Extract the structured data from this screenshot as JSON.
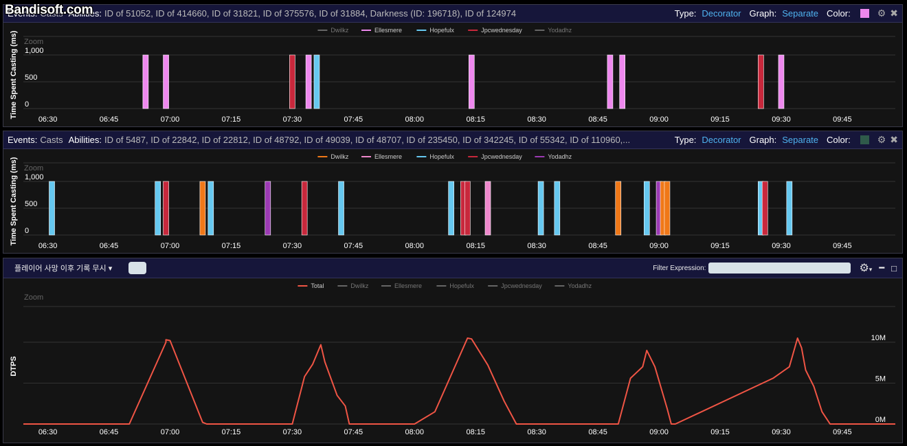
{
  "watermark": "Bandisoft.com",
  "x_ticks": [
    "06:30",
    "06:45",
    "07:00",
    "07:15",
    "07:30",
    "07:45",
    "08:00",
    "08:15",
    "08:30",
    "08:45",
    "09:00",
    "09:15",
    "09:30",
    "09:45"
  ],
  "panel1": {
    "events_label": "Events:",
    "events_value": "Casts",
    "abilities_label": "Abilities:",
    "abilities_value": "ID of 51052, ID of 414660, ID of 31821, ID of 375576, ID of 31884, Darkness (ID: 196718), ID of 124974",
    "type_label": "Type:",
    "type_value": "Decorator",
    "graph_label": "Graph:",
    "graph_value": "Separate",
    "color_label": "Color:",
    "color_value": "#ee88ee",
    "settings_icon": "gear-icon",
    "close_icon": "close-icon"
  },
  "panel2": {
    "events_label": "Events:",
    "events_value": "Casts",
    "abilities_label": "Abilities:",
    "abilities_value": "ID of 5487, ID of 22842, ID of 22812, ID of 48792, ID of 49039, ID of 48707, ID of 235450, ID of 342245, ID of 55342, ID of 110960,...",
    "type_label": "Type:",
    "type_value": "Decorator",
    "graph_label": "Graph:",
    "graph_value": "Separate",
    "color_label": "Color:",
    "color_value": "#2f5a4a",
    "settings_icon": "gear-icon",
    "close_icon": "close-icon"
  },
  "toolbar": {
    "dropdown_label": "플레이어 사망 이후 기록 무시",
    "filter_label": "Filter Expression:",
    "filter_value": "",
    "settings_icon": "gear-icon",
    "minimize_icon": "minimize-icon",
    "maximize_icon": "maximize-icon"
  },
  "chart_data": [
    {
      "type": "bar",
      "ylabel": "Time Spent Casting (ms)",
      "zoom_label": "Zoom",
      "y_ticks": [
        "0",
        "500",
        "1,000"
      ],
      "ylim": [
        0,
        1000
      ],
      "x_range": [
        "06:24",
        "09:58"
      ],
      "legend": [
        {
          "name": "Dwilkz",
          "color": "#666666"
        },
        {
          "name": "Ellesmere",
          "color": "#ee88ee"
        },
        {
          "name": "Hopefulx",
          "color": "#66c8f0"
        },
        {
          "name": "Jpcwednesday",
          "color": "#c8283c"
        },
        {
          "name": "Yodadhz",
          "color": "#666666"
        }
      ],
      "casts": [
        {
          "time": "06:54",
          "series": "Ellesmere",
          "value": 1000
        },
        {
          "time": "06:59",
          "series": "Ellesmere",
          "value": 1000
        },
        {
          "time": "07:30",
          "series": "Jpcwednesday",
          "value": 1000
        },
        {
          "time": "07:34",
          "series": "Ellesmere",
          "value": 1000
        },
        {
          "time": "07:36",
          "series": "Hopefulx",
          "value": 1000
        },
        {
          "time": "08:14",
          "series": "Ellesmere",
          "value": 1000
        },
        {
          "time": "08:48",
          "series": "Ellesmere",
          "value": 1000
        },
        {
          "time": "08:51",
          "series": "Ellesmere",
          "value": 1000
        },
        {
          "time": "09:25",
          "series": "Jpcwednesday",
          "value": 1000
        },
        {
          "time": "09:30",
          "series": "Ellesmere",
          "value": 1000
        }
      ]
    },
    {
      "type": "bar",
      "ylabel": "Time Spent Casting (ms)",
      "zoom_label": "Zoom",
      "y_ticks": [
        "0",
        "500",
        "1,000"
      ],
      "ylim": [
        0,
        1000
      ],
      "x_range": [
        "06:24",
        "09:58"
      ],
      "legend": [
        {
          "name": "Dwilkz",
          "color": "#f07818"
        },
        {
          "name": "Ellesmere",
          "color": "#ee88cc"
        },
        {
          "name": "Hopefulx",
          "color": "#66c8f0"
        },
        {
          "name": "Jpcwednesday",
          "color": "#c8283c"
        },
        {
          "name": "Yodadhz",
          "color": "#9c3ab4"
        }
      ],
      "casts": [
        {
          "time": "06:31",
          "series": "Hopefulx",
          "value": 1000
        },
        {
          "time": "06:57",
          "series": "Hopefulx",
          "value": 1000
        },
        {
          "time": "06:59",
          "series": "Jpcwednesday",
          "value": 1000
        },
        {
          "time": "07:08",
          "series": "Dwilkz",
          "value": 1000
        },
        {
          "time": "07:10",
          "series": "Hopefulx",
          "value": 1000
        },
        {
          "time": "07:24",
          "series": "Yodadhz",
          "value": 1000
        },
        {
          "time": "07:33",
          "series": "Jpcwednesday",
          "value": 1000
        },
        {
          "time": "07:42",
          "series": "Hopefulx",
          "value": 1000
        },
        {
          "time": "08:09",
          "series": "Hopefulx",
          "value": 1000
        },
        {
          "time": "08:12",
          "series": "Jpcwednesday",
          "value": 1000
        },
        {
          "time": "08:13",
          "series": "Jpcwednesday",
          "value": 1000
        },
        {
          "time": "08:18",
          "series": "Ellesmere",
          "value": 1000
        },
        {
          "time": "08:31",
          "series": "Hopefulx",
          "value": 1000
        },
        {
          "time": "08:35",
          "series": "Hopefulx",
          "value": 1000
        },
        {
          "time": "08:50",
          "series": "Dwilkz",
          "value": 1000
        },
        {
          "time": "08:57",
          "series": "Hopefulx",
          "value": 1000
        },
        {
          "time": "09:00",
          "series": "Yodadhz",
          "value": 1000
        },
        {
          "time": "09:01",
          "series": "Dwilkz",
          "value": 1000
        },
        {
          "time": "09:02",
          "series": "Dwilkz",
          "value": 1000
        },
        {
          "time": "09:25",
          "series": "Hopefulx",
          "value": 1000
        },
        {
          "time": "09:26",
          "series": "Jpcwednesday",
          "value": 1000
        },
        {
          "time": "09:32",
          "series": "Hopefulx",
          "value": 1000
        }
      ]
    },
    {
      "type": "line",
      "ylabel": "DTPS",
      "zoom_label": "Zoom",
      "y_ticks": [
        "0M",
        "5M",
        "10M"
      ],
      "ylim": [
        0,
        10000000
      ],
      "x_range": [
        "06:24",
        "09:58"
      ],
      "legend": [
        {
          "name": "Total",
          "color": "#f05545"
        },
        {
          "name": "Dwilkz",
          "color": "#666666"
        },
        {
          "name": "Ellesmere",
          "color": "#666666"
        },
        {
          "name": "Hopefulx",
          "color": "#666666"
        },
        {
          "name": "Jpcwednesday",
          "color": "#666666"
        },
        {
          "name": "Yodadhz",
          "color": "#666666"
        }
      ],
      "series": [
        {
          "name": "Total",
          "x": [
            "06:24",
            "06:50",
            "06:59",
            "06:59",
            "07:00",
            "07:08",
            "07:09",
            "07:30",
            "07:33",
            "07:35",
            "07:37",
            "07:38",
            "07:41",
            "07:43",
            "07:44",
            "07:45",
            "08:00",
            "08:05",
            "08:13",
            "08:14",
            "08:18",
            "08:22",
            "08:25",
            "08:50",
            "08:53",
            "08:56",
            "08:57",
            "08:59",
            "09:02",
            "09:03",
            "09:04",
            "09:28",
            "09:32",
            "09:34",
            "09:35",
            "09:36",
            "09:38",
            "09:40",
            "09:42",
            "09:58"
          ],
          "y": [
            0,
            0,
            10000000,
            10300000,
            10200000,
            200000,
            0,
            0,
            5800000,
            7300000,
            9700000,
            7600000,
            3500000,
            2200000,
            0,
            0,
            0,
            1500000,
            10500000,
            10400000,
            7200000,
            2800000,
            0,
            0,
            5600000,
            7000000,
            9000000,
            7000000,
            1900000,
            0,
            0,
            5600000,
            7000000,
            10500000,
            9300000,
            6600000,
            4600000,
            1500000,
            0,
            0
          ]
        }
      ]
    }
  ]
}
